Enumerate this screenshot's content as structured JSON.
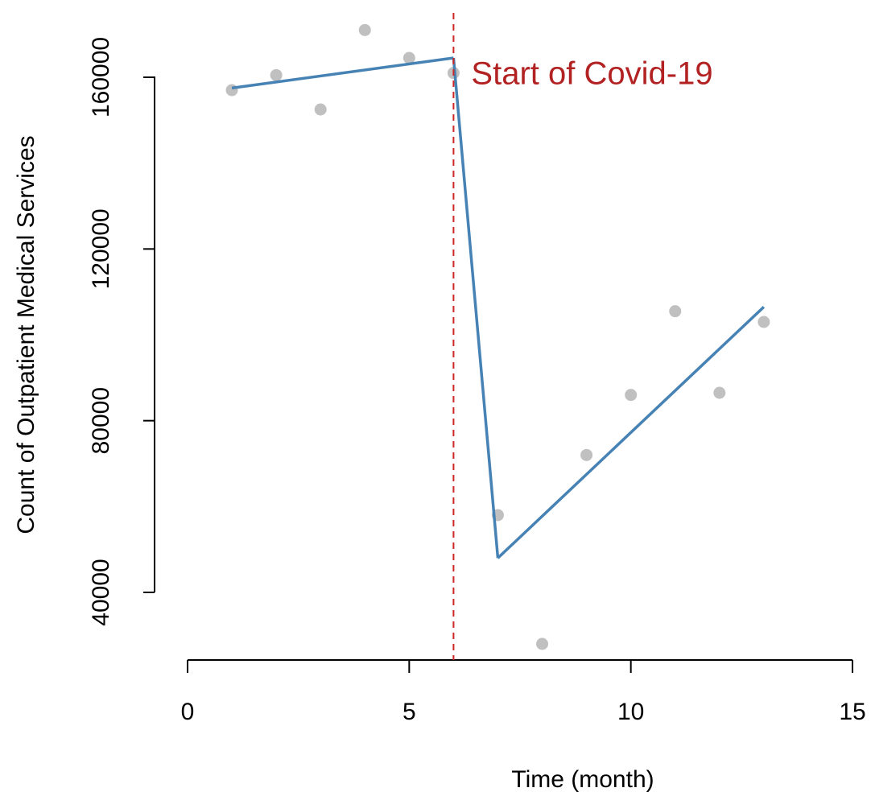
{
  "chart_data": {
    "type": "scatter",
    "xlabel": "Time (month)",
    "ylabel": "Count of Outpatient Medical Services",
    "xlim": [
      0,
      15
    ],
    "ylim": [
      35000,
      175000
    ],
    "x_ticks": [
      0,
      5,
      10,
      15
    ],
    "y_ticks": [
      40000,
      80000,
      120000,
      160000
    ],
    "grid": false,
    "points": {
      "x": [
        1,
        2,
        3,
        4,
        5,
        6,
        7,
        8,
        9,
        10,
        11,
        12,
        13
      ],
      "y": [
        157000,
        160500,
        152500,
        171000,
        164500,
        161000,
        58000,
        28000,
        72000,
        86000,
        105500,
        86500,
        103000
      ],
      "color": "#c0c0c0"
    },
    "series": [
      {
        "x": [
          1,
          6
        ],
        "y": [
          157500,
          164500
        ],
        "color": "#4682b4"
      },
      {
        "x": [
          6,
          7
        ],
        "y": [
          164500,
          48000
        ],
        "color": "#4682b4"
      },
      {
        "x": [
          7,
          13
        ],
        "y": [
          48000,
          106500
        ],
        "color": "#4682b4"
      }
    ],
    "vline": {
      "x": 6,
      "color": "#cd2626",
      "style": "dashed"
    },
    "annotations": [
      {
        "text": "Start of Covid-19",
        "x": 6.4,
        "y": 161000,
        "color": "#b22222"
      }
    ]
  }
}
